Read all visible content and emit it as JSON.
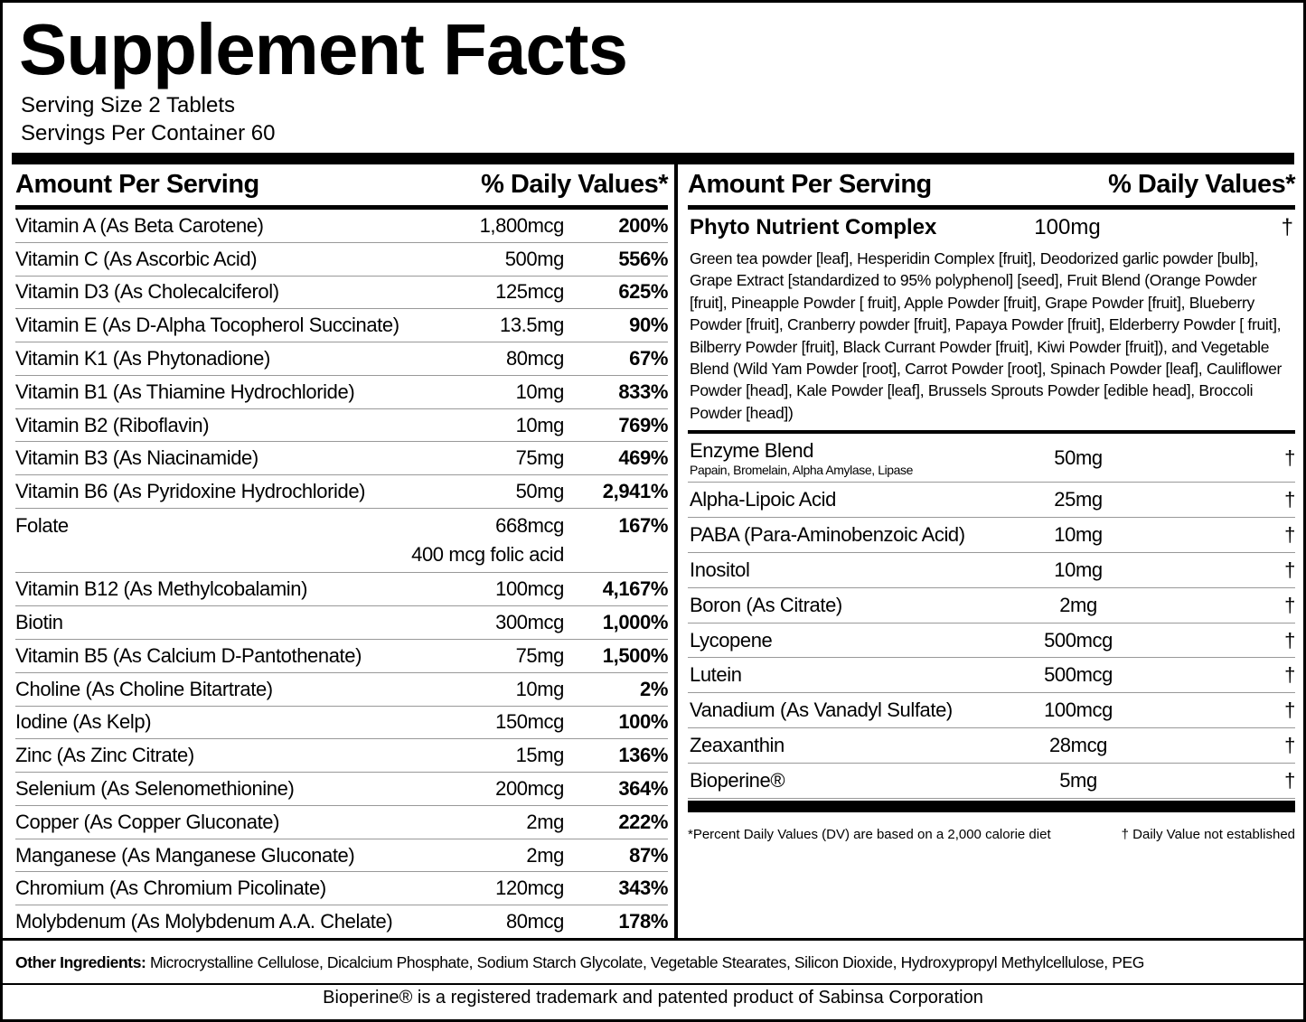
{
  "title": "Supplement Facts",
  "serving_size": "Serving Size 2 Tablets",
  "servings_per_container": "Servings Per Container 60",
  "left": {
    "header": [
      "Amount Per Serving",
      "% Daily Values*"
    ],
    "rows": [
      {
        "name": "Vitamin A (As Beta Carotene)",
        "amount": "1,800mcg",
        "dv": "200%"
      },
      {
        "name": "Vitamin C (As Ascorbic Acid)",
        "amount": "500mg",
        "dv": "556%"
      },
      {
        "name": "Vitamin D3 (As Cholecalciferol)",
        "amount": "125mcg",
        "dv": "625%"
      },
      {
        "name": "Vitamin E (As D-Alpha Tocopherol Succinate)",
        "amount": "13.5mg",
        "dv": "90%"
      },
      {
        "name": "Vitamin K1 (As Phytonadione)",
        "amount": "80mcg",
        "dv": "67%"
      },
      {
        "name": "Vitamin B1 (As Thiamine Hydrochloride)",
        "amount": "10mg",
        "dv": "833%"
      },
      {
        "name": "Vitamin B2 (Riboflavin)",
        "amount": "10mg",
        "dv": "769%"
      },
      {
        "name": "Vitamin B3 (As Niacinamide)",
        "amount": "75mg",
        "dv": "469%"
      },
      {
        "name": "Vitamin B6 (As Pyridoxine Hydrochloride)",
        "amount": "50mg",
        "dv": "2,941%"
      },
      {
        "name": "Folate",
        "amount": "668mcg",
        "dv": "167%",
        "note": "400 mcg folic acid"
      },
      {
        "name": "Vitamin B12 (As Methylcobalamin)",
        "amount": "100mcg",
        "dv": "4,167%"
      },
      {
        "name": "Biotin",
        "amount": "300mcg",
        "dv": "1,000%"
      },
      {
        "name": "Vitamin B5 (As Calcium D-Pantothenate)",
        "amount": "75mg",
        "dv": "1,500%"
      },
      {
        "name": "Choline (As Choline Bitartrate)",
        "amount": "10mg",
        "dv": "2%"
      },
      {
        "name": "Iodine (As Kelp)",
        "amount": "150mcg",
        "dv": "100%"
      },
      {
        "name": "Zinc (As Zinc Citrate)",
        "amount": "15mg",
        "dv": "136%"
      },
      {
        "name": "Selenium (As Selenomethionine)",
        "amount": "200mcg",
        "dv": "364%"
      },
      {
        "name": "Copper (As Copper Gluconate)",
        "amount": "2mg",
        "dv": "222%"
      },
      {
        "name": "Manganese (As Manganese Gluconate)",
        "amount": "2mg",
        "dv": "87%"
      },
      {
        "name": "Chromium (As Chromium Picolinate)",
        "amount": "120mcg",
        "dv": "343%"
      },
      {
        "name": "Molybdenum (As Molybdenum A.A. Chelate)",
        "amount": "80mcg",
        "dv": "178%"
      }
    ]
  },
  "right": {
    "header": [
      "Amount Per Serving",
      "% Daily Values*"
    ],
    "phyto": {
      "name": "Phyto Nutrient Complex",
      "amount": "100mg",
      "dv": "†",
      "description": "Green tea powder [leaf], Hesperidin Complex [fruit], Deodorized garlic powder [bulb], Grape Extract [standardized to 95% polyphenol] [seed], Fruit Blend (Orange Powder [fruit], Pineapple Powder [ fruit], Apple Powder [fruit], Grape Powder [fruit], Blueberry Powder [fruit], Cranberry powder [fruit], Papaya Powder [fruit], Elderberry Powder [ fruit], Bilberry Powder [fruit], Black Currant Powder [fruit], Kiwi Powder [fruit]), and Vegetable Blend (Wild Yam Powder [root], Carrot Powder [root], Spinach Powder [leaf], Cauliflower Powder [head], Kale Powder [leaf], Brussels Sprouts Powder [edible head], Broccoli Powder [head])"
    },
    "rows": [
      {
        "name": "Enzyme Blend",
        "sub": "Papain, Bromelain, Alpha Amylase, Lipase",
        "amount": "50mg",
        "dv": "†"
      },
      {
        "name": "Alpha-Lipoic Acid",
        "amount": "25mg",
        "dv": "†"
      },
      {
        "name": "PABA (Para-Aminobenzoic Acid)",
        "amount": "10mg",
        "dv": "†"
      },
      {
        "name": "Inositol",
        "amount": "10mg",
        "dv": "†"
      },
      {
        "name": "Boron (As Citrate)",
        "amount": "2mg",
        "dv": "†"
      },
      {
        "name": "Lycopene",
        "amount": "500mcg",
        "dv": "†"
      },
      {
        "name": "Lutein",
        "amount": "500mcg",
        "dv": "†"
      },
      {
        "name": "Vanadium (As Vanadyl Sulfate)",
        "amount": "100mcg",
        "dv": "†"
      },
      {
        "name": "Zeaxanthin",
        "amount": "28mcg",
        "dv": "†"
      },
      {
        "name": "Bioperine®",
        "amount": "5mg",
        "dv": "†"
      }
    ],
    "footnote_left": "*Percent Daily Values (DV) are based on a 2,000 calorie diet",
    "footnote_right": "† Daily Value not established"
  },
  "other_ingredients": {
    "label": "Other Ingredients:",
    "text": "Microcrystalline Cellulose, Dicalcium Phosphate, Sodium Starch Glycolate, Vegetable Stearates, Silicon Dioxide, Hydroxypropyl Methylcellulose, PEG"
  },
  "trademark": "Bioperine® is a registered trademark and patented product of Sabinsa Corporation"
}
